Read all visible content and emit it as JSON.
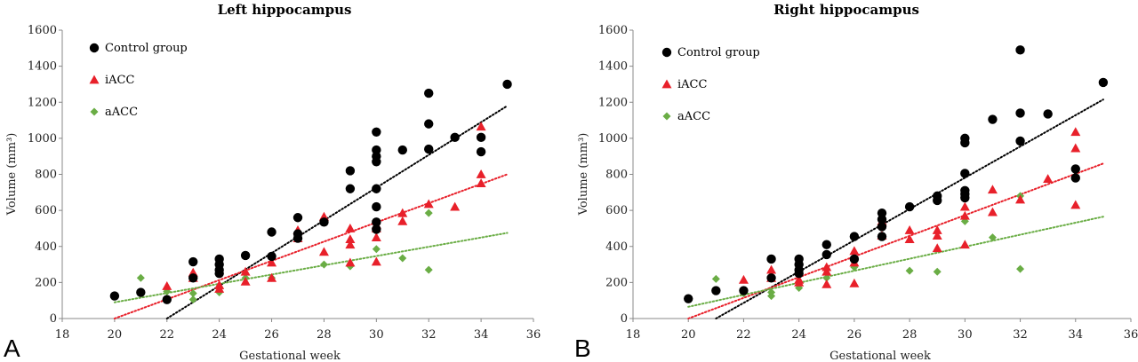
{
  "chart_data": [
    {
      "type": "scatter",
      "panel_label": "A",
      "title": "Left hippocampus",
      "xlabel": "Gestational week",
      "ylabel": "Volume (mm³)",
      "xlim": [
        18,
        36
      ],
      "ylim": [
        0,
        1600
      ],
      "xticks": [
        18,
        20,
        22,
        24,
        26,
        28,
        30,
        32,
        34,
        36
      ],
      "yticks": [
        0,
        200,
        400,
        600,
        800,
        1000,
        1200,
        1400,
        1600
      ],
      "legend_position": "top-left",
      "series": [
        {
          "name": "Control group",
          "marker": "circle",
          "color": "#000000",
          "points": [
            [
              20,
              125
            ],
            [
              21,
              145
            ],
            [
              22,
              105
            ],
            [
              23,
              315
            ],
            [
              23,
              225
            ],
            [
              24,
              330
            ],
            [
              24,
              300
            ],
            [
              24,
              270
            ],
            [
              24,
              250
            ],
            [
              25,
              350
            ],
            [
              26,
              480
            ],
            [
              26,
              345
            ],
            [
              27,
              560
            ],
            [
              27,
              470
            ],
            [
              27,
              445
            ],
            [
              28,
              535
            ],
            [
              29,
              820
            ],
            [
              29,
              720
            ],
            [
              30,
              1035
            ],
            [
              30,
              935
            ],
            [
              30,
              900
            ],
            [
              30,
              870
            ],
            [
              30,
              720
            ],
            [
              30,
              620
            ],
            [
              30,
              535
            ],
            [
              30,
              495
            ],
            [
              31,
              935
            ],
            [
              32,
              1250
            ],
            [
              32,
              1080
            ],
            [
              32,
              940
            ],
            [
              33,
              1005
            ],
            [
              34,
              1005
            ],
            [
              34,
              925
            ],
            [
              35,
              1300
            ]
          ],
          "trend": {
            "style": "dotted",
            "x": [
              22,
              35
            ],
            "y": [
              0,
              1180
            ]
          }
        },
        {
          "name": "iACC",
          "marker": "triangle",
          "color": "#e8202a",
          "points": [
            [
              22,
              180
            ],
            [
              23,
              255
            ],
            [
              23,
              225
            ],
            [
              24,
              185
            ],
            [
              24,
              165
            ],
            [
              25,
              260
            ],
            [
              25,
              205
            ],
            [
              26,
              310
            ],
            [
              26,
              225
            ],
            [
              27,
              490
            ],
            [
              27,
              445
            ],
            [
              28,
              565
            ],
            [
              28,
              370
            ],
            [
              29,
              500
            ],
            [
              29,
              440
            ],
            [
              29,
              410
            ],
            [
              29,
              310
            ],
            [
              30,
              520
            ],
            [
              30,
              500
            ],
            [
              30,
              450
            ],
            [
              30,
              315
            ],
            [
              31,
              585
            ],
            [
              31,
              540
            ],
            [
              32,
              635
            ],
            [
              33,
              620
            ],
            [
              34,
              1065
            ],
            [
              34,
              800
            ],
            [
              34,
              750
            ]
          ],
          "trend": {
            "style": "dotted",
            "x": [
              20,
              35
            ],
            "y": [
              0,
              800
            ]
          }
        },
        {
          "name": "aACC",
          "marker": "diamond",
          "color": "#6aad45",
          "points": [
            [
              21,
              225
            ],
            [
              22,
              150
            ],
            [
              23,
              140
            ],
            [
              23,
              105
            ],
            [
              24,
              145
            ],
            [
              25,
              225
            ],
            [
              26,
              225
            ],
            [
              27,
              450
            ],
            [
              28,
              300
            ],
            [
              29,
              290
            ],
            [
              30,
              385
            ],
            [
              31,
              335
            ],
            [
              32,
              585
            ],
            [
              32,
              270
            ]
          ],
          "trend": {
            "style": "dotted",
            "x": [
              20,
              35
            ],
            "y": [
              90,
              475
            ]
          }
        }
      ]
    },
    {
      "type": "scatter",
      "panel_label": "B",
      "title": "Right hippocampus",
      "xlabel": "Gestational week",
      "ylabel": "Volume (mm³)",
      "xlim": [
        18,
        36
      ],
      "ylim": [
        0,
        1600
      ],
      "xticks": [
        18,
        20,
        22,
        24,
        26,
        28,
        30,
        32,
        34,
        36
      ],
      "yticks": [
        0,
        200,
        400,
        600,
        800,
        1000,
        1200,
        1400,
        1600
      ],
      "legend_position": "top-left",
      "series": [
        {
          "name": "Control group",
          "marker": "circle",
          "color": "#000000",
          "points": [
            [
              20,
              110
            ],
            [
              21,
              155
            ],
            [
              22,
              155
            ],
            [
              23,
              330
            ],
            [
              23,
              225
            ],
            [
              24,
              330
            ],
            [
              24,
              300
            ],
            [
              24,
              270
            ],
            [
              24,
              250
            ],
            [
              25,
              410
            ],
            [
              25,
              355
            ],
            [
              26,
              455
            ],
            [
              26,
              330
            ],
            [
              27,
              585
            ],
            [
              27,
              550
            ],
            [
              27,
              510
            ],
            [
              27,
              455
            ],
            [
              28,
              620
            ],
            [
              29,
              680
            ],
            [
              29,
              655
            ],
            [
              30,
              1000
            ],
            [
              30,
              975
            ],
            [
              30,
              805
            ],
            [
              30,
              710
            ],
            [
              30,
              690
            ],
            [
              30,
              670
            ],
            [
              31,
              1105
            ],
            [
              32,
              1490
            ],
            [
              32,
              1140
            ],
            [
              32,
              985
            ],
            [
              33,
              1135
            ],
            [
              34,
              830
            ],
            [
              34,
              780
            ],
            [
              35,
              1310
            ]
          ],
          "trend": {
            "style": "dotted",
            "x": [
              21,
              35
            ],
            "y": [
              0,
              1215
            ]
          }
        },
        {
          "name": "iACC",
          "marker": "triangle",
          "color": "#e8202a",
          "points": [
            [
              22,
              215
            ],
            [
              23,
              270
            ],
            [
              23,
              225
            ],
            [
              24,
              215
            ],
            [
              24,
              200
            ],
            [
              25,
              285
            ],
            [
              25,
              260
            ],
            [
              25,
              190
            ],
            [
              26,
              375
            ],
            [
              26,
              310
            ],
            [
              26,
              195
            ],
            [
              27,
              540
            ],
            [
              27,
              460
            ],
            [
              28,
              490
            ],
            [
              28,
              440
            ],
            [
              29,
              490
            ],
            [
              29,
              460
            ],
            [
              29,
              390
            ],
            [
              30,
              620
            ],
            [
              30,
              570
            ],
            [
              30,
              410
            ],
            [
              31,
              715
            ],
            [
              31,
              590
            ],
            [
              32,
              660
            ],
            [
              33,
              775
            ],
            [
              34,
              1035
            ],
            [
              34,
              945
            ],
            [
              34,
              630
            ]
          ],
          "trend": {
            "style": "dotted",
            "x": [
              20,
              35
            ],
            "y": [
              0,
              860
            ]
          }
        },
        {
          "name": "aACC",
          "marker": "diamond",
          "color": "#6aad45",
          "points": [
            [
              21,
              220
            ],
            [
              22,
              140
            ],
            [
              23,
              145
            ],
            [
              23,
              125
            ],
            [
              24,
              170
            ],
            [
              25,
              225
            ],
            [
              26,
              285
            ],
            [
              27,
              460
            ],
            [
              28,
              265
            ],
            [
              29,
              260
            ],
            [
              30,
              540
            ],
            [
              31,
              450
            ],
            [
              32,
              680
            ],
            [
              32,
              275
            ]
          ],
          "trend": {
            "style": "dotted",
            "x": [
              20,
              35
            ],
            "y": [
              65,
              565
            ]
          }
        }
      ]
    }
  ]
}
